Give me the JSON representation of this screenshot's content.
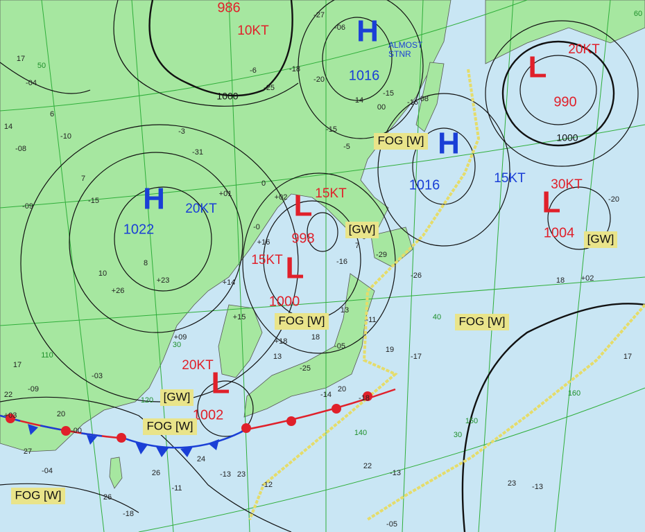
{
  "systems": [
    {
      "symbol": "H",
      "pressure": "1016",
      "remark": "ALMOST STNR"
    },
    {
      "symbol": "H",
      "pressure": "1022",
      "speed": "20KT"
    },
    {
      "symbol": "H",
      "pressure": "1016",
      "speed": "15KT"
    },
    {
      "symbol": "L",
      "pressure": "990",
      "speed": "20KT"
    },
    {
      "symbol": "L",
      "pressure": "1004",
      "speed": "30KT"
    },
    {
      "symbol": "L",
      "pressure": "998",
      "speed": "15KT"
    },
    {
      "symbol": "L",
      "pressure": "1000",
      "speed": "15KT"
    },
    {
      "symbol": "L",
      "pressure": "1002",
      "speed": "20KT"
    },
    {
      "pressure": "986",
      "speed": "10KT"
    }
  ],
  "warnings": [
    "FOG [W]",
    "FOG [W]",
    "FOG [W]",
    "FOG [W]",
    "FOG [W]",
    "[GW]",
    "[GW]",
    "[GW]"
  ],
  "isobar_labels": [
    "1000",
    "1000"
  ],
  "grid_labels": [
    "40",
    "30",
    "140",
    "150",
    "160",
    "110",
    "120",
    "50",
    "60",
    "30"
  ],
  "stations": [
    "17",
    "-04",
    "14",
    "-08",
    "-09",
    "6",
    "-10",
    "7",
    "-15",
    "10",
    "+26",
    "8",
    "+23",
    "-03",
    "17",
    "-09",
    "22",
    "+03",
    "20",
    "-00",
    "27",
    "-04",
    "26",
    "-11",
    "24",
    "-13",
    "23",
    "-12",
    "22",
    "-13",
    "23",
    "-13",
    "17",
    "19",
    "-17",
    "18",
    "-05",
    "13",
    "-11",
    "-15",
    "-5",
    "-16",
    "7",
    "-29",
    "-26",
    "18",
    "+02",
    "-20",
    "-06",
    "-20",
    "-18",
    "-6",
    "-25",
    "-27",
    "14",
    "00",
    "-16",
    "-08",
    "-15",
    "-3",
    "-31",
    "+01",
    "0",
    "+02",
    "-0",
    "+16",
    "+14",
    "+15",
    "+09",
    "+18",
    "13",
    "-25",
    "20",
    "-14",
    "-18",
    "-05",
    "-18",
    "26"
  ]
}
